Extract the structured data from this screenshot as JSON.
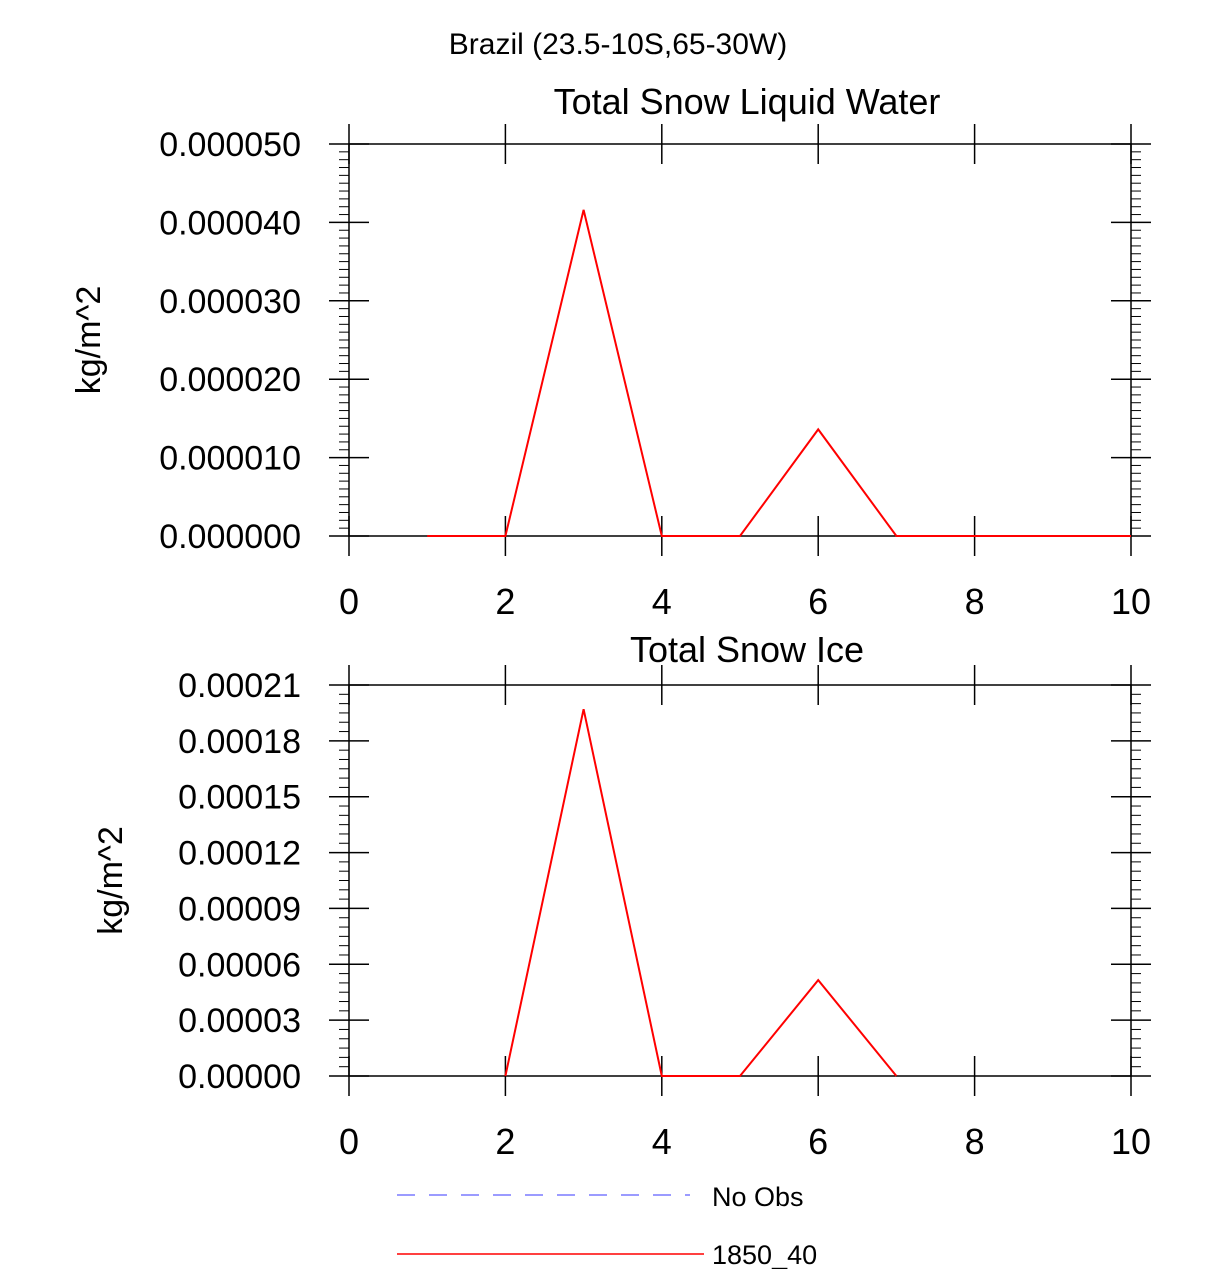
{
  "page": {
    "suptitle": "Brazil (23.5-10S,65-30W)"
  },
  "legend": {
    "placement": "bottom-left",
    "items": [
      {
        "label": "No Obs",
        "color": "#7a7aff",
        "style": "dashed"
      },
      {
        "label": "1850_40",
        "color": "#ff0000",
        "style": "solid"
      }
    ]
  },
  "chart_data": [
    {
      "type": "line",
      "title": "Total Snow Liquid Water",
      "xlabel": "",
      "ylabel": "kg/m^2",
      "xlim": [
        0,
        10
      ],
      "ylim": [
        0,
        5e-05
      ],
      "xticks": [
        0,
        2,
        4,
        6,
        8,
        10
      ],
      "xtick_labels": [
        "0",
        "2",
        "4",
        "6",
        "8",
        "10"
      ],
      "yticks": [
        0,
        1e-05,
        2e-05,
        3e-05,
        4e-05,
        5e-05
      ],
      "ytick_labels": [
        "0.000000",
        "0.000010",
        "0.000020",
        "0.000030",
        "0.000040",
        "0.000050"
      ],
      "y_minor_per_major": 10,
      "series": [
        {
          "name": "1850_40",
          "color": "#ff0000",
          "x": [
            1,
            2,
            3,
            4,
            5,
            6,
            7,
            8,
            9,
            10
          ],
          "values": [
            0,
            0,
            4.16e-05,
            0,
            0,
            1.36e-05,
            0,
            0,
            0,
            0
          ]
        }
      ]
    },
    {
      "type": "line",
      "title": "Total Snow Ice",
      "xlabel": "",
      "ylabel": "kg/m^2",
      "xlim": [
        0,
        10
      ],
      "ylim": [
        0,
        0.00021
      ],
      "xticks": [
        0,
        2,
        4,
        6,
        8,
        10
      ],
      "xtick_labels": [
        "0",
        "2",
        "4",
        "6",
        "8",
        "10"
      ],
      "yticks": [
        0,
        3e-05,
        6e-05,
        9e-05,
        0.00012,
        0.00015,
        0.00018,
        0.00021
      ],
      "ytick_labels": [
        "0.00000",
        "0.00003",
        "0.00006",
        "0.00009",
        "0.00012",
        "0.00015",
        "0.00018",
        "0.00021"
      ],
      "y_minor_per_major": 6,
      "series": [
        {
          "name": "1850_40",
          "color": "#ff0000",
          "x": [
            2,
            3,
            4,
            5,
            6,
            7
          ],
          "values": [
            0,
            0.000197,
            0,
            0,
            5.15e-05,
            0
          ]
        }
      ]
    }
  ]
}
